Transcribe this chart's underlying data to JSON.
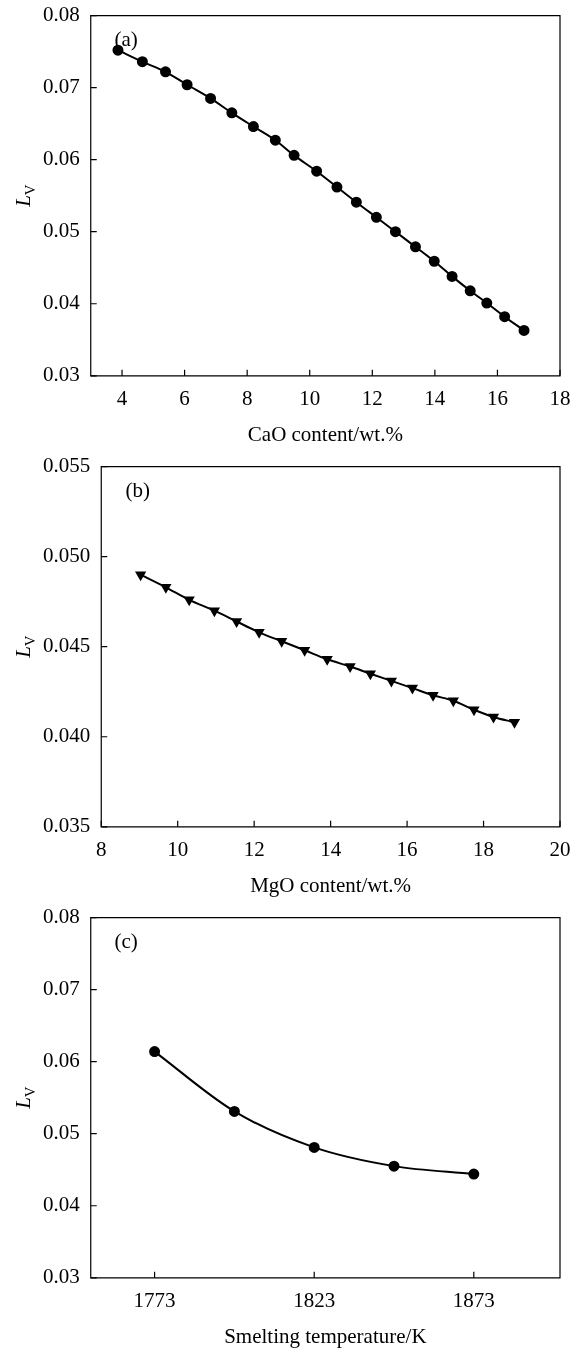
{
  "chart_data": [
    {
      "type": "line",
      "xlabel": "CaO content/wt.%",
      "ylabel": "L$_{V}$",
      "annotations": [
        "(a)"
      ],
      "marker": "circle",
      "line_style": "solid",
      "grid": false,
      "legend": false,
      "series": [
        {
          "color": "#000000",
          "x": [
            3.87,
            4.65,
            5.39,
            6.08,
            6.83,
            7.51,
            8.2,
            8.9,
            9.5,
            10.22,
            10.87,
            11.49,
            12.13,
            12.74,
            13.38,
            13.98,
            14.55,
            15.13,
            15.66,
            16.23,
            16.85
          ],
          "values": [
            0.0752,
            0.0736,
            0.0722,
            0.0704,
            0.0685,
            0.0665,
            0.0646,
            0.0627,
            0.0606,
            0.0584,
            0.0562,
            0.0541,
            0.052,
            0.05,
            0.0479,
            0.0459,
            0.0438,
            0.0418,
            0.0401,
            0.0382,
            0.0363
          ]
        }
      ],
      "xlim": [
        3,
        18
      ],
      "xticks": [
        4,
        6,
        8,
        10,
        12,
        14,
        16,
        18
      ],
      "ylim": [
        0.03,
        0.08
      ],
      "yticks": [
        0.03,
        0.04,
        0.05,
        0.06,
        0.07,
        0.08
      ]
    },
    {
      "type": "line",
      "xlabel": "MgO content/wt.%",
      "ylabel": "L$_{V}$",
      "annotations": [
        "(b)"
      ],
      "marker": "triangle",
      "line_style": "solid",
      "grid": false,
      "legend": false,
      "series": [
        {
          "color": "#000000",
          "x": [
            9.03,
            9.69,
            10.3,
            10.96,
            11.54,
            12.13,
            12.72,
            13.32,
            13.91,
            14.51,
            15.04,
            15.59,
            16.14,
            16.68,
            17.21,
            17.75,
            18.26,
            18.81
          ],
          "values": [
            0.049,
            0.0483,
            0.0476,
            0.047,
            0.0464,
            0.0458,
            0.0453,
            0.0448,
            0.0443,
            0.0439,
            0.0435,
            0.0431,
            0.0427,
            0.0423,
            0.042,
            0.0415,
            0.0411,
            0.0408
          ]
        }
      ],
      "xlim": [
        8,
        20
      ],
      "xticks": [
        8,
        10,
        12,
        14,
        16,
        18,
        20
      ],
      "ylim": [
        0.035,
        0.055
      ],
      "yticks": [
        0.035,
        {
          "value": 0.04,
          "label": "0.040"
        },
        0.045,
        {
          "value": 0.05,
          "label": "0.050"
        },
        0.055
      ]
    },
    {
      "type": "line",
      "xlabel": "Smelting temperature/K",
      "ylabel": "L$_{V}$",
      "annotations": [
        "(c)"
      ],
      "marker": "circle",
      "line_style": "solid",
      "grid": false,
      "legend": false,
      "series": [
        {
          "color": "#000000",
          "x": [
            1773,
            1798,
            1823,
            1848,
            1873
          ],
          "values": [
            0.0614,
            0.0531,
            0.0481,
            0.0455,
            0.0444
          ]
        }
      ],
      "xlim": [
        1753,
        1900
      ],
      "xticks": [
        1773,
        1823,
        1873
      ],
      "ylim": [
        0.03,
        0.08
      ],
      "yticks": [
        0.03,
        0.04,
        0.05,
        0.06,
        0.07,
        0.08
      ]
    }
  ]
}
